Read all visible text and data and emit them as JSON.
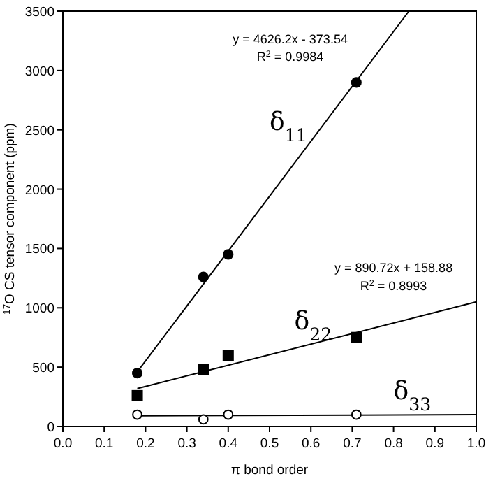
{
  "chart_data": {
    "type": "scatter",
    "xlabel": "π bond order",
    "ylabel": "$^{17}$O CS tensor component (ppm)",
    "xlim": [
      0,
      1
    ],
    "ylim": [
      0,
      3500
    ],
    "xticks": [
      {
        "value": 0,
        "label": "0.0"
      },
      {
        "value": 0.1,
        "label": "0.1"
      },
      {
        "value": 0.2,
        "label": "0.2"
      },
      {
        "value": 0.3,
        "label": "0.3"
      },
      {
        "value": 0.4,
        "label": "0.4"
      },
      {
        "value": 0.5,
        "label": "0.5"
      },
      {
        "value": 0.6,
        "label": "0.6"
      },
      {
        "value": 0.7,
        "label": "0.7"
      },
      {
        "value": 0.8,
        "label": "0.8"
      },
      {
        "value": 0.9,
        "label": "0.9"
      },
      {
        "value": 1,
        "label": "1.0"
      }
    ],
    "yticks": [
      0,
      500,
      1000,
      1500,
      2000,
      2500,
      3000,
      3500
    ],
    "grid": false,
    "series": [
      {
        "name": "δ$_{11}$",
        "marker": "circle",
        "color": "#000000",
        "x": [
          0.18,
          0.34,
          0.4,
          0.71
        ],
        "values": [
          450,
          1260,
          1450,
          2900
        ]
      },
      {
        "name": "δ$_{22}$",
        "marker": "square",
        "color": "#000000",
        "x": [
          0.18,
          0.34,
          0.4,
          0.71
        ],
        "values": [
          260,
          480,
          600,
          750
        ]
      },
      {
        "name": "δ$_{33}$",
        "marker": "circle",
        "color": "#000000",
        "x": [
          0.18,
          0.34,
          0.4,
          0.71
        ],
        "values": [
          100,
          60,
          100,
          100
        ]
      },
      {
        "type": "line",
        "color": "#000000",
        "x": [
          0.18,
          0.837
        ],
        "values": [
          460,
          3500
        ]
      },
      {
        "type": "line",
        "color": "#000000",
        "x": [
          0.18,
          1.0
        ],
        "values": [
          320,
          1050
        ]
      },
      {
        "type": "line",
        "color": "#000000",
        "x": [
          0.18,
          1.0
        ],
        "values": [
          90,
          100
        ]
      }
    ],
    "annotations": [
      "y = 4626.2x - 373.54",
      "R$^{2}$ = 0.9984",
      "y = 890.72x + 158.88",
      "R$^{2}$ = 0.8993"
    ]
  }
}
